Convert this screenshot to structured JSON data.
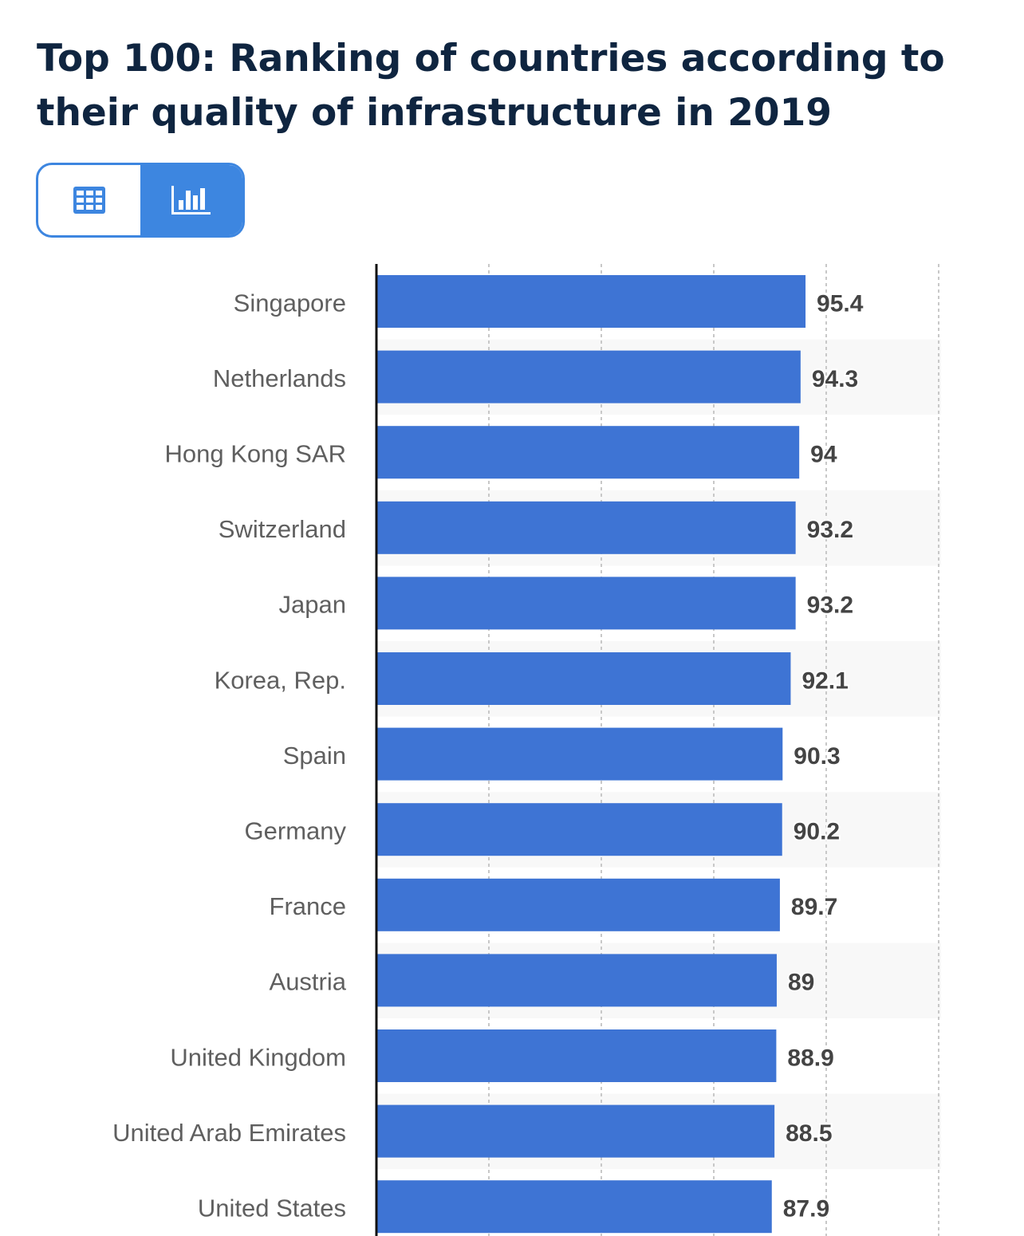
{
  "title": "Top 100: Ranking of countries according to their quality of infrastructure in 2019",
  "view_toggle": {
    "options": [
      "table-icon",
      "bar-chart-icon"
    ],
    "active": "bar-chart-icon",
    "accent": "#3d86e0"
  },
  "chart_data": {
    "type": "bar",
    "orientation": "horizontal",
    "categories": [
      "Singapore",
      "Netherlands",
      "Hong Kong SAR",
      "Switzerland",
      "Japan",
      "Korea, Rep.",
      "Spain",
      "Germany",
      "France",
      "Austria",
      "United Kingdom",
      "United Arab Emirates",
      "United States"
    ],
    "values": [
      95.4,
      94.3,
      94,
      93.2,
      93.2,
      92.1,
      90.3,
      90.2,
      89.7,
      89,
      88.9,
      88.5,
      87.9
    ],
    "value_labels": [
      "95.4",
      "94.3",
      "94",
      "93.2",
      "93.2",
      "92.1",
      "90.3",
      "90.2",
      "89.7",
      "89",
      "88.9",
      "88.5",
      "87.9"
    ],
    "xlim": [
      0,
      125
    ],
    "gridlines": [
      25,
      50,
      75,
      100,
      125
    ],
    "grid": true,
    "bar_color": "#3e74d4",
    "title": "Top 100: Ranking of countries according to their quality of infrastructure in 2019"
  }
}
